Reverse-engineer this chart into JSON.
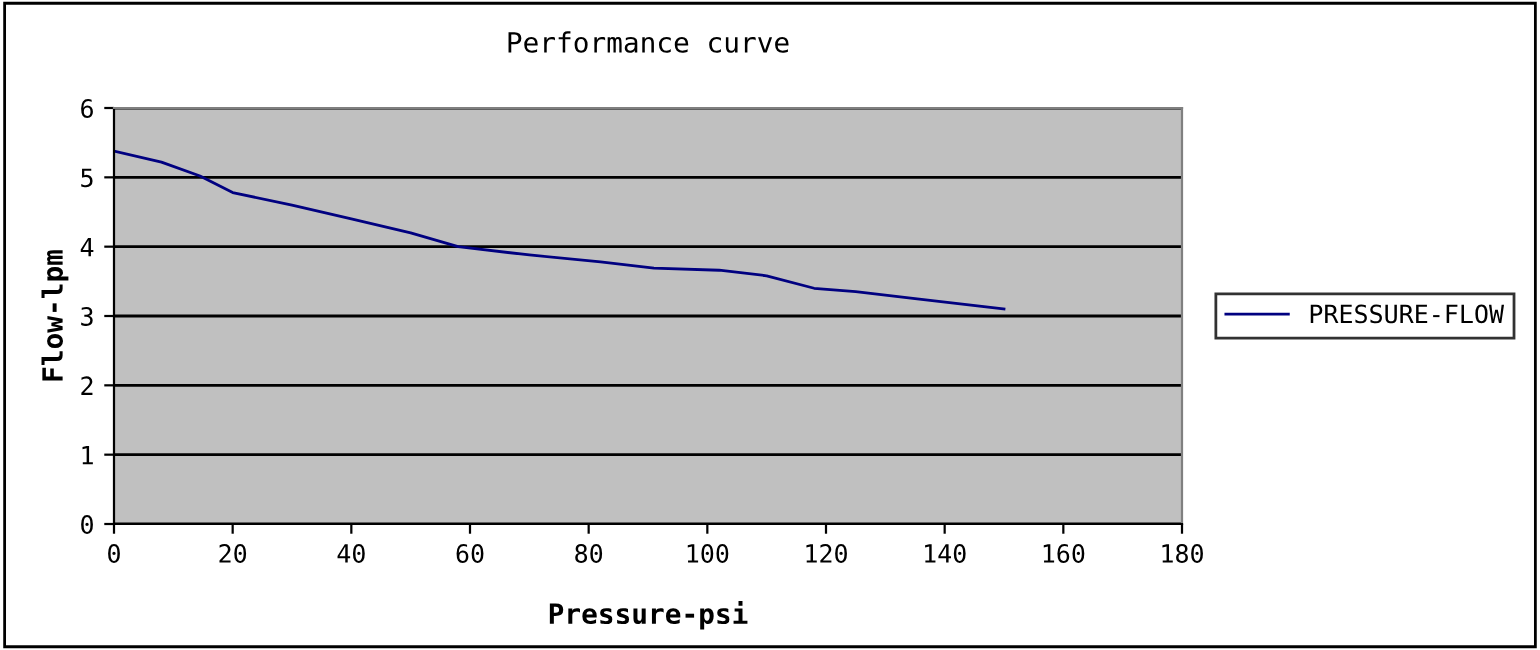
{
  "chart_data": {
    "type": "line",
    "title": "Performance curve",
    "xlabel": "Pressure-psi",
    "ylabel": "Flow-lpm",
    "x": [
      0,
      8,
      14.5,
      20,
      30,
      40,
      50,
      58,
      70,
      82,
      91,
      102,
      110,
      118,
      125,
      135,
      150
    ],
    "series": [
      {
        "name": "PRESSURE-FLOW",
        "color": "#000080",
        "values": [
          5.38,
          5.22,
          5.02,
          4.78,
          4.6,
          4.4,
          4.2,
          4.0,
          3.88,
          3.78,
          3.69,
          3.66,
          3.58,
          3.4,
          3.35,
          3.25,
          3.1
        ]
      }
    ],
    "xlim": [
      0,
      180
    ],
    "xticks": [
      0,
      20,
      40,
      60,
      80,
      100,
      120,
      140,
      160,
      180
    ],
    "ylim": [
      0,
      6
    ],
    "yticks": [
      0,
      1,
      2,
      3,
      4,
      5,
      6
    ],
    "grid": "y",
    "legend": "right",
    "marker": "none",
    "line_style": "solid"
  }
}
